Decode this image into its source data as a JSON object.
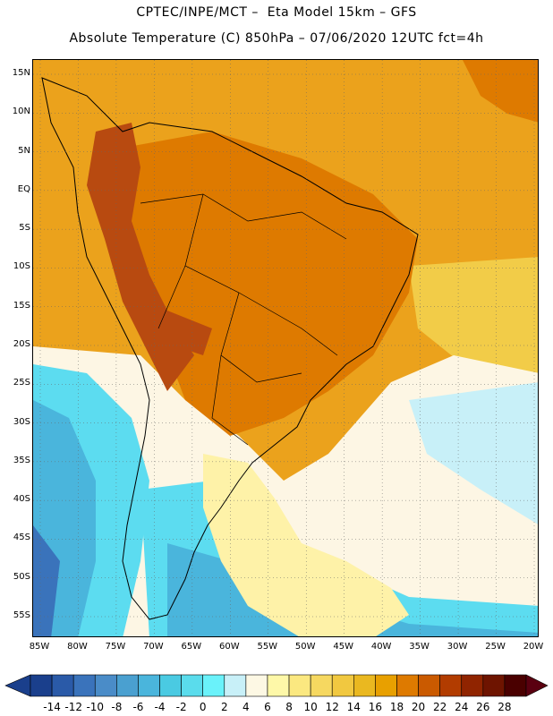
{
  "title_line1": "CPTEC/INPE/MCT –  Eta Model 15km – GFS",
  "title_line2": "Absolute Temperature (C) 850hPa – 07/06/2020 12UTC fct=4h",
  "map": {
    "lat_labels": [
      "15N",
      "10N",
      "5N",
      "EQ",
      "5S",
      "10S",
      "15S",
      "20S",
      "25S",
      "30S",
      "35S",
      "40S",
      "45S",
      "50S",
      "55S"
    ],
    "lon_labels": [
      "85W",
      "80W",
      "75W",
      "70W",
      "65W",
      "60W",
      "55W",
      "50W",
      "45W",
      "40W",
      "35W",
      "30W",
      "25W",
      "20W"
    ]
  },
  "colorbar": {
    "labels": [
      "-14",
      "-12",
      "-10",
      "-8",
      "-6",
      "-4",
      "-2",
      "0",
      "2",
      "4",
      "6",
      "8",
      "10",
      "12",
      "14",
      "16",
      "18",
      "20",
      "22",
      "24",
      "26",
      "28"
    ],
    "colors": [
      "#1a3f8c",
      "#2a5aa8",
      "#3a73bb",
      "#4a8cc8",
      "#4aa0d0",
      "#4ab5dc",
      "#4acae2",
      "#5adcec",
      "#6af2fa",
      "#c8f0f8",
      "#fdf8e4",
      "#fef8a8",
      "#fbe880",
      "#f6d860",
      "#f1c840",
      "#eab820",
      "#e8a000",
      "#de7a00",
      "#ca5a00",
      "#b23c00",
      "#902400",
      "#6e1400",
      "#4a0000"
    ],
    "colors_bounds": {
      "under": "#1a3f8c",
      "over": "#5a0010"
    }
  },
  "palette": {
    "tropical_orange": "#eba21c",
    "warm_orange": "#de7a00",
    "hot": "#b84a10",
    "yellow": "#f2cc48",
    "pale_yellow": "#fef2a8",
    "cream": "#fdf6e4",
    "light_cyan": "#c8f0f8",
    "cyan": "#5cdcf0",
    "sky": "#4ab5dc",
    "blue": "#3a73bb",
    "coast": "#000000"
  }
}
